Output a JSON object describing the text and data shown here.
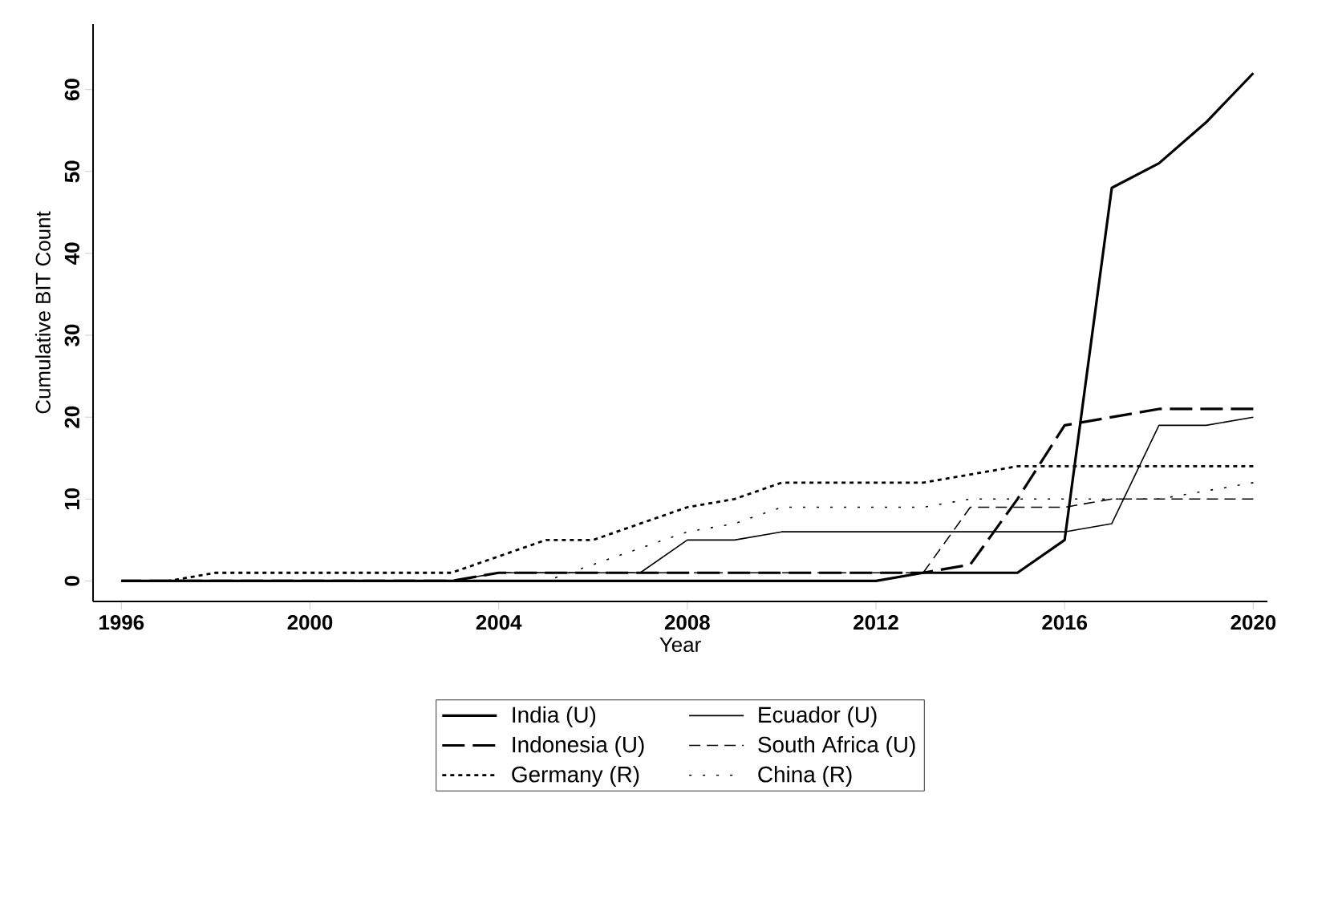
{
  "chart_data": {
    "type": "line",
    "xlabel": "Year",
    "ylabel": "Cumulative BIT Count",
    "x": [
      1996,
      1997,
      1998,
      1999,
      2000,
      2001,
      2002,
      2003,
      2004,
      2005,
      2006,
      2007,
      2008,
      2009,
      2010,
      2011,
      2012,
      2013,
      2014,
      2015,
      2016,
      2017,
      2018,
      2019,
      2020
    ],
    "series": [
      {
        "name": "India (U)",
        "color": "#000000",
        "line_style": "solid",
        "values": [
          0,
          0,
          0,
          0,
          0,
          0,
          0,
          0,
          0,
          0,
          0,
          0,
          0,
          0,
          0,
          0,
          0,
          1,
          1,
          1,
          5,
          48,
          51,
          56,
          62
        ]
      },
      {
        "name": "Ecuador (U)",
        "color": "#000000",
        "line_style": "solid",
        "values": [
          0,
          0,
          0,
          0,
          0,
          0,
          0,
          0,
          1,
          1,
          1,
          1,
          5,
          5,
          6,
          6,
          6,
          6,
          6,
          6,
          6,
          7,
          19,
          19,
          20
        ]
      },
      {
        "name": "Indonesia (U)",
        "color": "#000000",
        "line_style": "dashed",
        "values": [
          0,
          0,
          0,
          0,
          0,
          0,
          0,
          0,
          1,
          1,
          1,
          1,
          1,
          1,
          1,
          1,
          1,
          1,
          2,
          10,
          19,
          20,
          21,
          21,
          21
        ]
      },
      {
        "name": "South Africa (U)",
        "color": "#000000",
        "line_style": "dashed",
        "values": [
          0,
          0,
          0,
          0,
          0,
          0,
          0,
          0,
          1,
          1,
          1,
          1,
          1,
          1,
          1,
          1,
          1,
          1,
          9,
          9,
          9,
          10,
          10,
          10,
          10
        ]
      },
      {
        "name": "Germany (R)",
        "color": "#000000",
        "line_style": "dotted",
        "values": [
          0,
          0,
          1,
          1,
          1,
          1,
          1,
          1,
          3,
          5,
          5,
          7,
          9,
          10,
          12,
          12,
          12,
          12,
          13,
          14,
          14,
          14,
          14,
          14,
          14
        ]
      },
      {
        "name": "China (R)",
        "color": "#000000",
        "line_style": "dotted",
        "values": [
          0,
          0,
          0,
          0,
          0,
          0,
          0,
          0,
          0,
          0,
          2,
          4,
          6,
          7,
          9,
          9,
          9,
          9,
          10,
          10,
          10,
          10,
          10,
          11,
          12
        ]
      }
    ],
    "xlim": [
      1995.4,
      2020.3
    ],
    "ylim": [
      -2.5,
      68
    ],
    "xticks": [
      1996,
      2000,
      2004,
      2008,
      2012,
      2016,
      2020
    ],
    "yticks": [
      0,
      10,
      20,
      30,
      40,
      50,
      60
    ],
    "grid": false,
    "legend": "bottom"
  }
}
